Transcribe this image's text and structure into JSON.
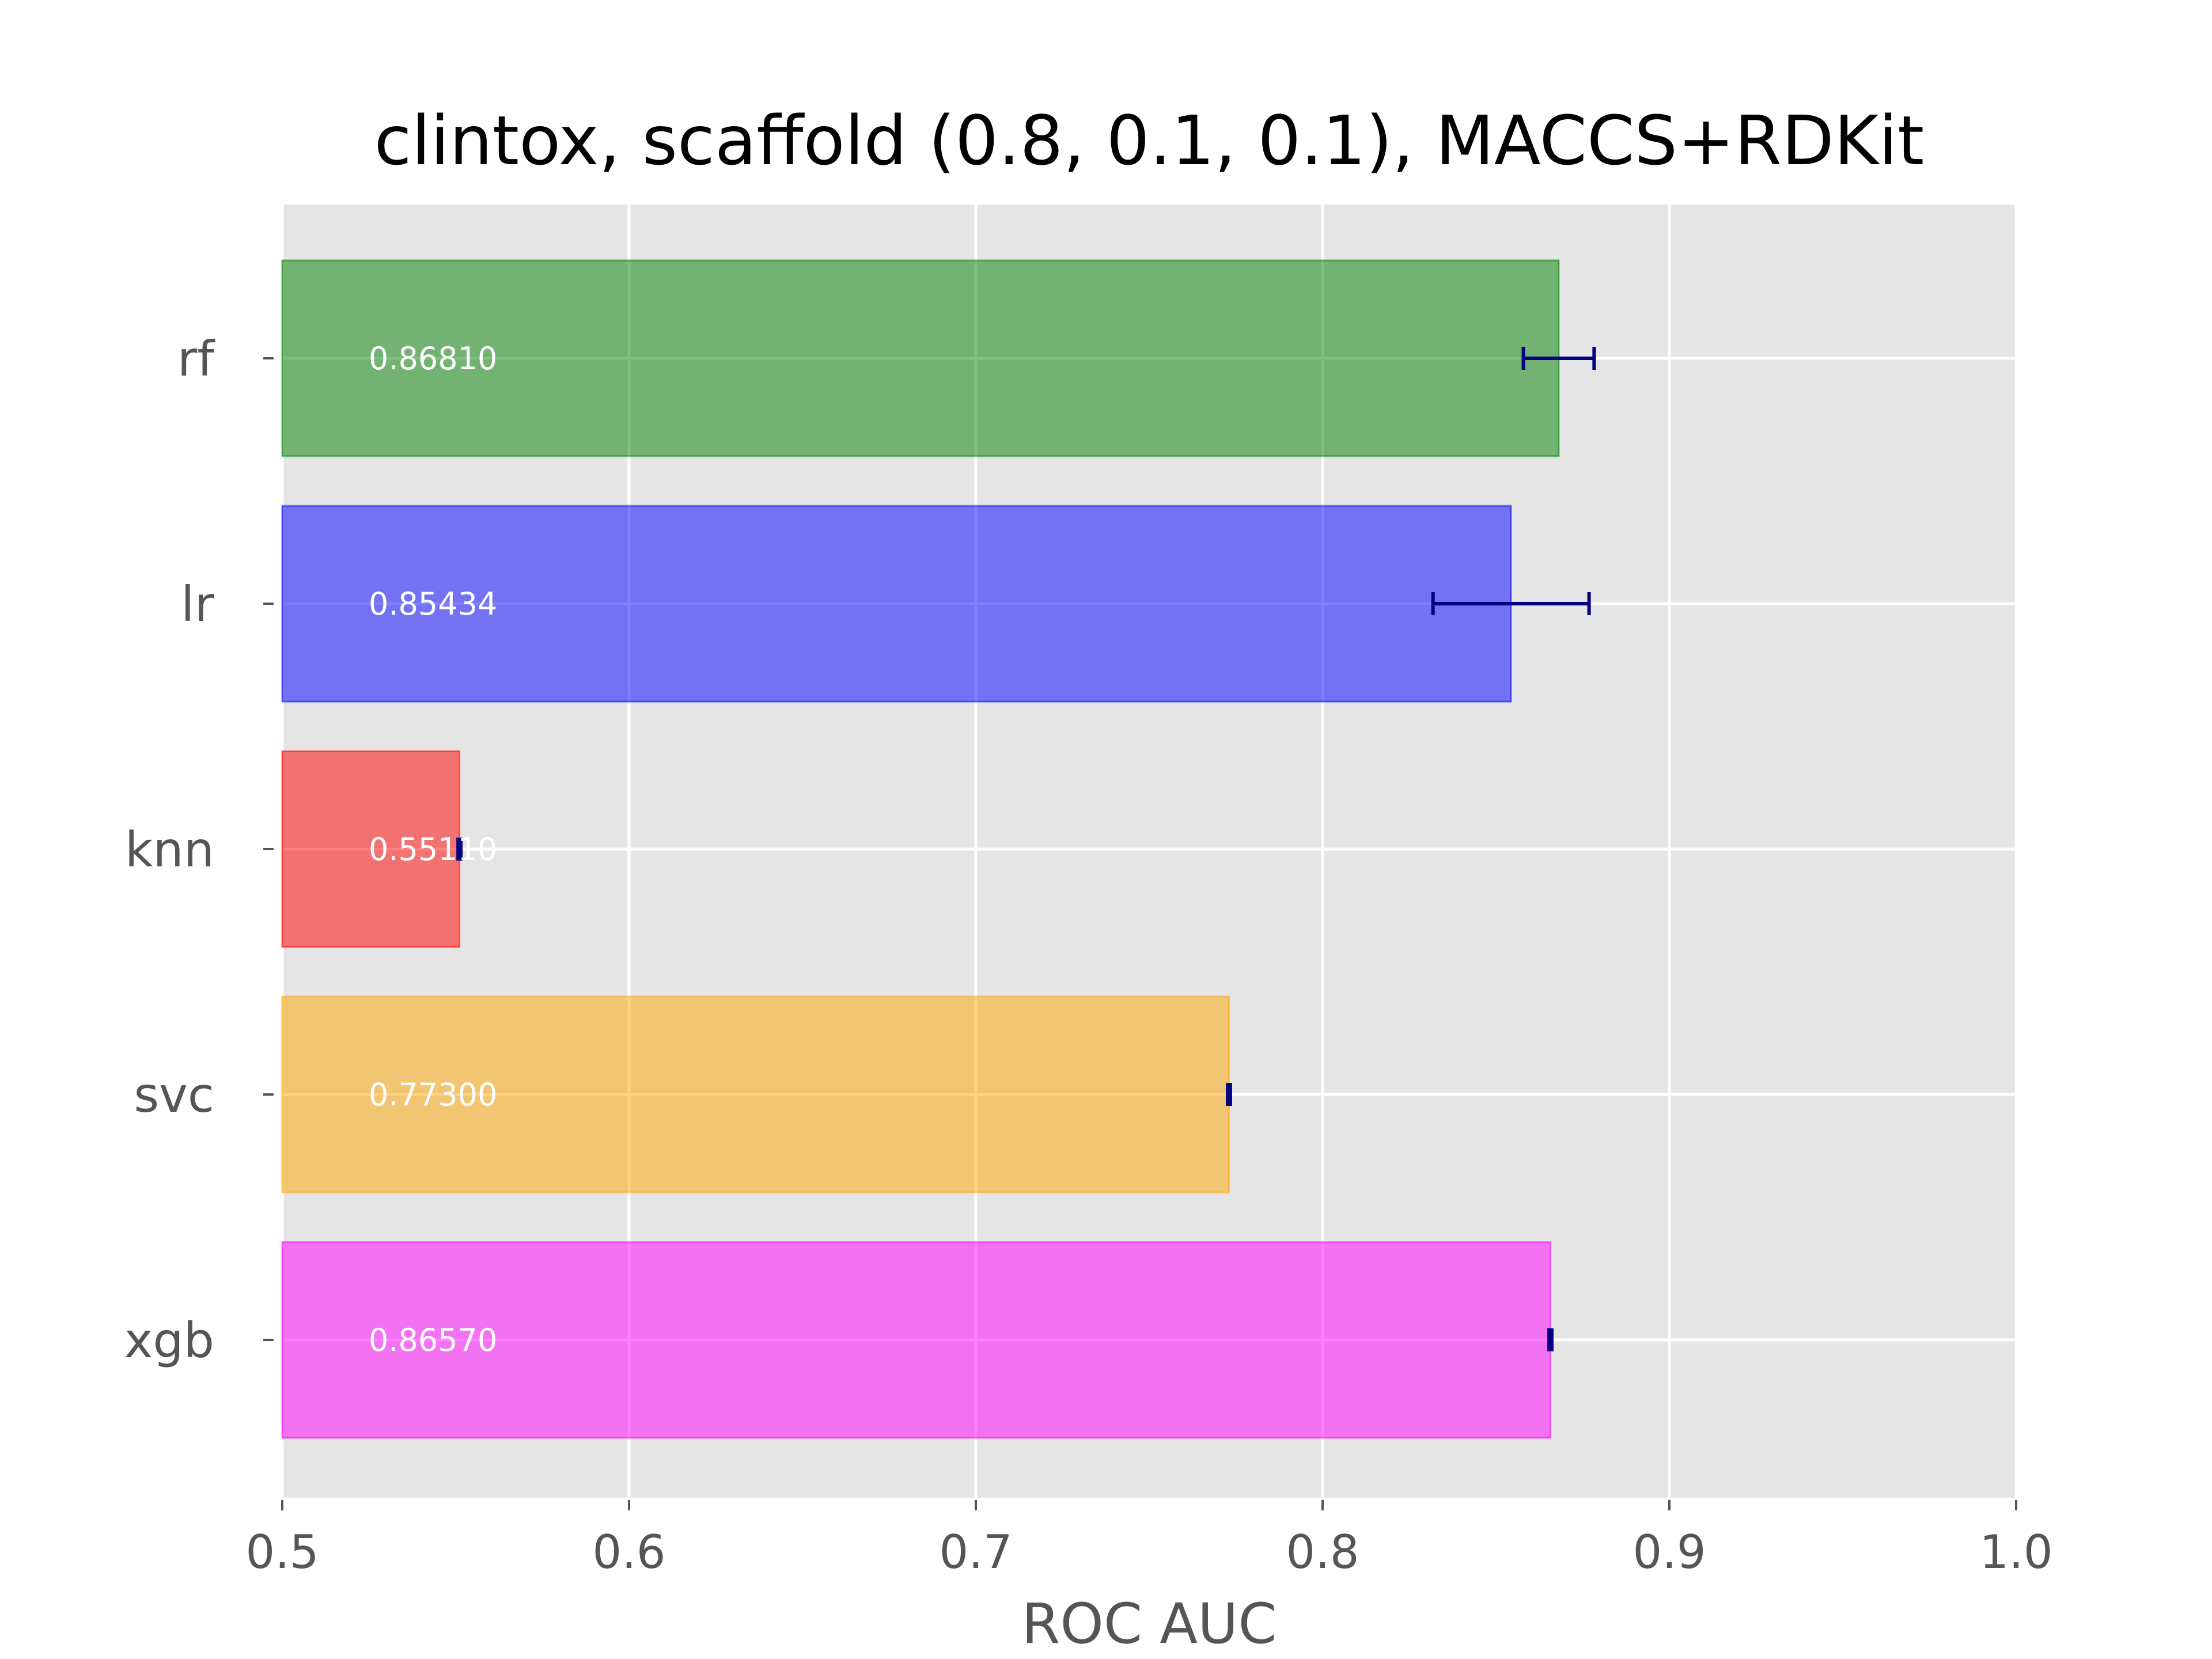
{
  "chart_data": {
    "type": "bar",
    "orientation": "horizontal",
    "title": "clintox, scaffold (0.8, 0.1, 0.1), MACCS+RDKit",
    "xlabel": "ROC AUC",
    "ylabel": "",
    "xlim": [
      0.5,
      1.0
    ],
    "xticks": [
      0.5,
      0.6,
      0.7,
      0.8,
      0.9,
      1.0
    ],
    "xtick_labels": [
      "0.5",
      "0.6",
      "0.7",
      "0.8",
      "0.9",
      "1.0"
    ],
    "grid": true,
    "categories": [
      "rf",
      "lr",
      "knn",
      "svc",
      "xgb"
    ],
    "values": [
      0.8681,
      0.85434,
      0.5511,
      0.773,
      0.8657
    ],
    "value_labels": [
      "0.86810",
      "0.85434",
      "0.55110",
      "0.77300",
      "0.86570"
    ],
    "errors": [
      0.0102,
      0.0225,
      0.0004,
      0.0004,
      0.0004
    ],
    "colors": [
      "#008000",
      "#0000ff",
      "#ff0000",
      "#ffa500",
      "#ff00ff"
    ],
    "error_color": "#000080"
  }
}
